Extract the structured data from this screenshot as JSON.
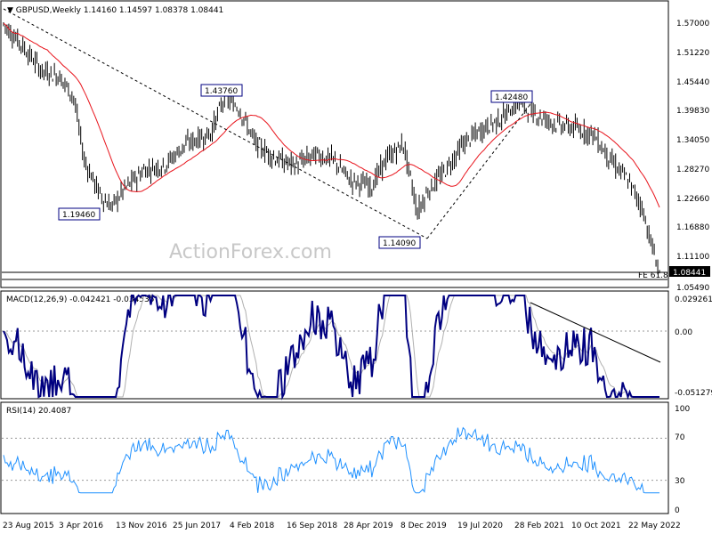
{
  "header": {
    "symbol": "GBPUSD,Weekly",
    "ohlc": "1.14160 1.14597 1.08378 1.08441"
  },
  "watermark": "ActionForex.com",
  "colors": {
    "bullish": "#000000",
    "ma": "#e8141c",
    "macd": "#000080",
    "signal": "#b0b0b0",
    "rsi": "#1e90ff",
    "annotation_border": "#000080",
    "trendline": "#000000"
  },
  "chart_data": [
    {
      "type": "candlestick",
      "title": "GBPUSD,Weekly",
      "ylim": [
        1.0549,
        1.5995
      ],
      "yticks": [
        "1.57000",
        "1.51220",
        "1.45440",
        "1.39830",
        "1.34050",
        "1.28270",
        "1.22660",
        "1.16880",
        "1.11100",
        "1.05490"
      ],
      "current_price_label": "1.08441",
      "fib_label": "FE 61.8",
      "annotations": [
        {
          "label": "1.43760",
          "value": 1.4376
        },
        {
          "label": "1.19460",
          "value": 1.1946
        },
        {
          "label": "1.14090",
          "value": 1.1409
        },
        {
          "label": "1.42480",
          "value": 1.4248
        }
      ],
      "moving_average": "red line (medium-term MA)",
      "grid": false
    },
    {
      "type": "line",
      "title": "MACD(12,26,9) -0.042421 -0.034535",
      "yticks": [
        "0.029261",
        "0.00",
        "-0.051279"
      ],
      "series": [
        {
          "values": "macd"
        },
        {
          "values": "signal"
        }
      ]
    },
    {
      "type": "line",
      "title": "RSI(14) 20.4087",
      "ylim": [
        0,
        100
      ],
      "yticks": [
        "100",
        "70",
        "30",
        "0"
      ]
    }
  ],
  "xaxis": {
    "labels": [
      "23 Aug 2015",
      "3 Apr 2016",
      "13 Nov 2016",
      "25 Jun 2017",
      "4 Feb 2018",
      "16 Sep 2018",
      "28 Apr 2019",
      "8 Dec 2019",
      "19 Jul 2020",
      "28 Feb 2021",
      "10 Oct 2021",
      "22 May 2022"
    ]
  }
}
